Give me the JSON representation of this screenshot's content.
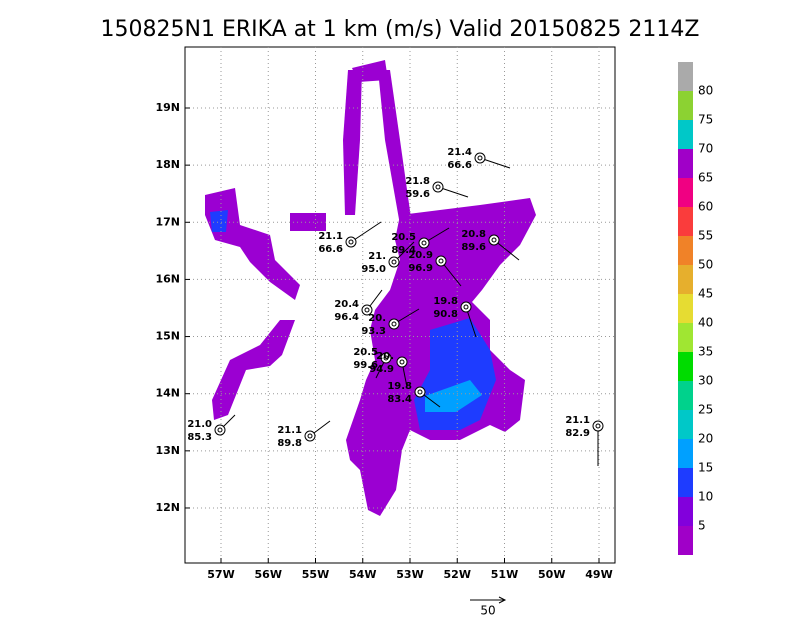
{
  "title": "150825N1 ERIKA at 1 km (m/s) Valid 20150825 2114Z",
  "lat_labels": [
    "19N",
    "18N",
    "17N",
    "16N",
    "15N",
    "14N",
    "13N",
    "12N"
  ],
  "lon_labels": [
    "57W",
    "56W",
    "55W",
    "54W",
    "53W",
    "52W",
    "51W",
    "50W",
    "49W"
  ],
  "colorbar": {
    "labels": [
      "5",
      "10",
      "15",
      "20",
      "25",
      "30",
      "35",
      "40",
      "45",
      "50",
      "55",
      "60",
      "65",
      "70",
      "75",
      "80"
    ],
    "colors": [
      "#a000c8",
      "#8200dc",
      "#1e3cff",
      "#00a0ff",
      "#00c8c8",
      "#00d28c",
      "#00dc00",
      "#a0e632",
      "#e6dc32",
      "#e6af2d",
      "#f08228",
      "#fa3c3c",
      "#f00082",
      "#a000c8",
      "#00c8c8",
      "#8cd232",
      "#aaaaaa"
    ]
  },
  "stations": [
    {
      "t": "21.4",
      "p": "66.6"
    },
    {
      "t": "21.8",
      "p": "59.6"
    },
    {
      "t": "20.5",
      "p": "89.4"
    },
    {
      "t": "20.8",
      "p": "89.6"
    },
    {
      "t": "21.1",
      "p": "66.6"
    },
    {
      "t": "21.",
      "p": "95.0"
    },
    {
      "t": "20.9",
      "p": "96.9"
    },
    {
      "t": "20.4",
      "p": "96.4"
    },
    {
      "t": "19.8",
      "p": "90.8"
    },
    {
      "t": "20.",
      "p": "93.3"
    },
    {
      "t": "20.5",
      "p": "99.6"
    },
    {
      "t": "20.",
      "p": "94.9"
    },
    {
      "t": "19.8",
      "p": "83.4"
    },
    {
      "t": "21.0",
      "p": "85.3"
    },
    {
      "t": "21.1",
      "p": "89.8"
    },
    {
      "t": "21.1",
      "p": "82.9"
    }
  ],
  "vector_scale": "50"
}
